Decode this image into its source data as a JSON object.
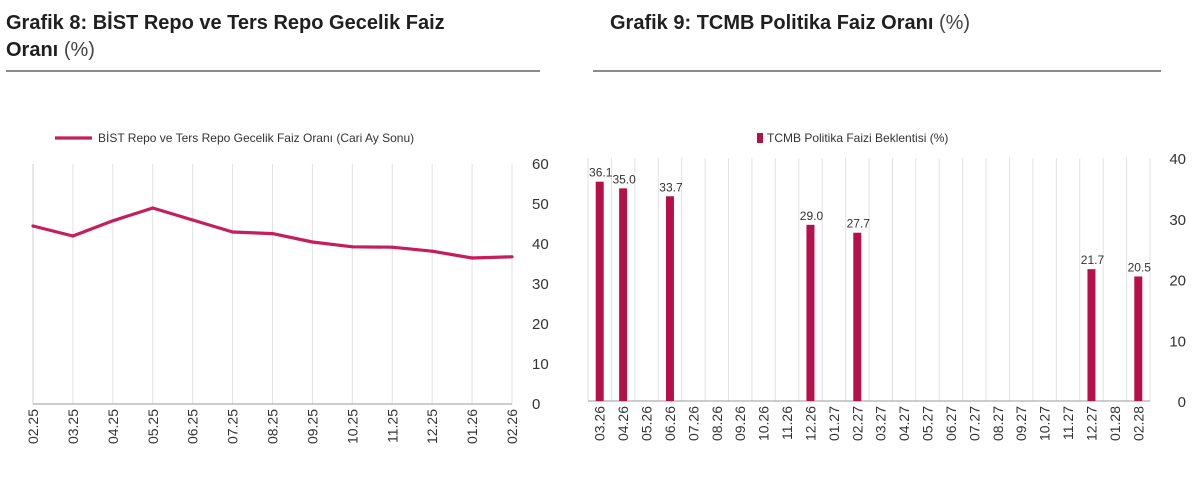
{
  "panels": [
    {
      "title": "Grafik 8:  BİST Repo ve Ters Repo Gecelik Faiz",
      "title_line2": "Oranı",
      "unit": "(%)"
    },
    {
      "title": "Grafik 9: TCMB Politika Faiz Oranı",
      "unit": "(%)"
    }
  ],
  "chart_data": [
    {
      "type": "line",
      "title": "",
      "legend": "BİST Repo ve Ters Repo Gecelik Faiz Oranı (Cari Ay Sonu)",
      "legend_position": "top",
      "color": "#c41e5c",
      "x": [
        "02.25",
        "03.25",
        "04.25",
        "05.25",
        "06.25",
        "07.25",
        "08.25",
        "09.25",
        "10.25",
        "11.25",
        "12.25",
        "01.26",
        "02.26"
      ],
      "y": [
        44.5,
        42.0,
        45.8,
        49.0,
        46.0,
        43.0,
        42.6,
        40.5,
        39.3,
        39.2,
        38.2,
        36.5,
        36.8
      ],
      "ylim": [
        0,
        60
      ],
      "yticks": [
        0,
        10,
        20,
        30,
        40,
        50,
        60
      ],
      "y_axis_side": "right",
      "grid": "vertical"
    },
    {
      "type": "bar",
      "title": "",
      "legend": "TCMB Politika Faizi Beklentisi (%)",
      "legend_position": "top",
      "color": "#b5104a",
      "categories": [
        "03.26",
        "04.26",
        "05.26",
        "06.26",
        "07.26",
        "08.26",
        "09.26",
        "10.26",
        "11.26",
        "12.26",
        "01.27",
        "02.27",
        "03.27",
        "04.27",
        "05.27",
        "06.27",
        "07.27",
        "08.27",
        "09.27",
        "10.27",
        "11.27",
        "12.27",
        "01.28",
        "02.28"
      ],
      "values": [
        36.1,
        35.0,
        null,
        33.7,
        null,
        null,
        null,
        null,
        null,
        29.0,
        null,
        27.7,
        null,
        null,
        null,
        null,
        null,
        null,
        null,
        null,
        null,
        21.7,
        null,
        20.5
      ],
      "data_labels": [
        "36.1",
        "35.0",
        "",
        "33.7",
        "",
        "",
        "",
        "",
        "",
        "29.0",
        "",
        "27.7",
        "",
        "",
        "",
        "",
        "",
        "",
        "",
        "",
        "",
        "21.7",
        "",
        "20.5"
      ],
      "ylim": [
        0,
        40
      ],
      "yticks": [
        0,
        10,
        20,
        30,
        40
      ],
      "y_axis_side": "right",
      "grid": "vertical"
    }
  ]
}
